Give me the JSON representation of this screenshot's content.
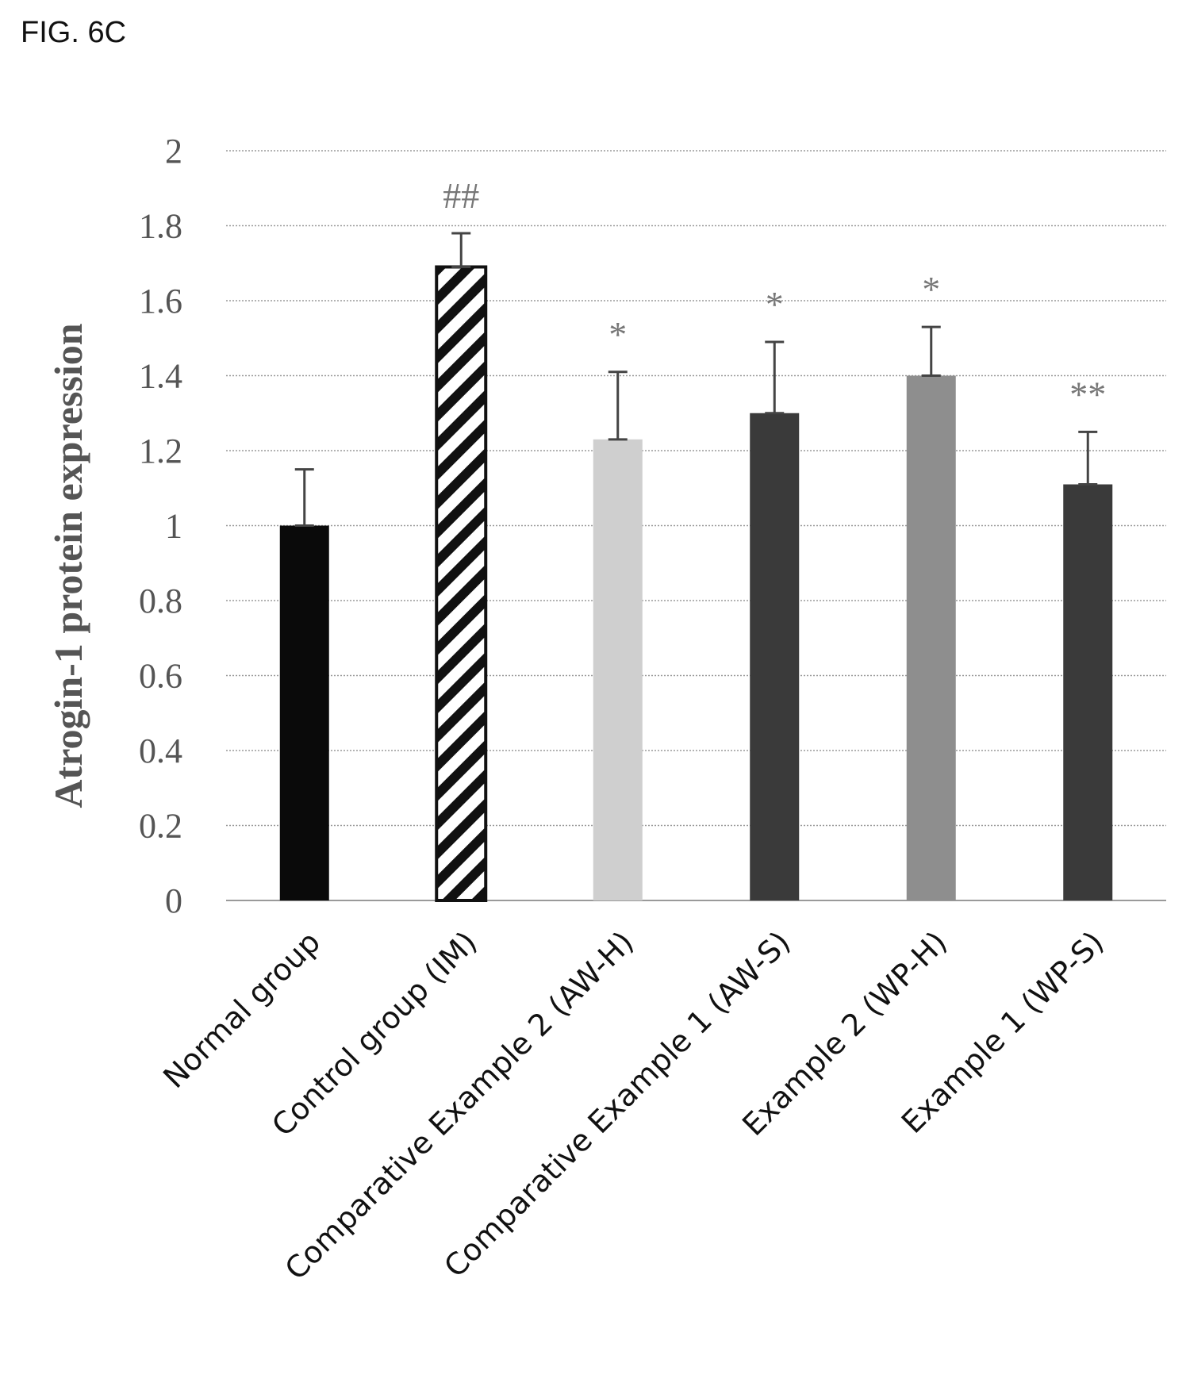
{
  "figure_label": "FIG. 6C",
  "chart_data": {
    "type": "bar",
    "title": "",
    "xlabel": "",
    "ylabel": "Atrogin-1 protein expression",
    "ylim": [
      0,
      2
    ],
    "yticks": [
      "0",
      "0.2",
      "0.4",
      "0.6",
      "0.8",
      "1",
      "1.2",
      "1.4",
      "1.6",
      "1.8",
      "2"
    ],
    "grid": true,
    "categories": [
      "Normal group",
      "Control group (IM)",
      "Comparative Example 2 (AW-H)",
      "Comparative Example 1 (AW-S)",
      "Example 2 (WP-H)",
      "Example 1 (WP-S)"
    ],
    "values": [
      1.0,
      1.69,
      1.23,
      1.3,
      1.4,
      1.11
    ],
    "errors": [
      0.15,
      0.09,
      0.18,
      0.19,
      0.13,
      0.14
    ],
    "significance": [
      "",
      "##",
      "*",
      "*",
      "*",
      "**"
    ],
    "bar_styles": [
      "solid-black",
      "hatched",
      "light-gray",
      "dark-gray",
      "mid-gray",
      "dark-gray"
    ],
    "colors": {
      "solid-black": "#0a0a0a",
      "light-gray": "#cfcfcf",
      "dark-gray": "#3a3a3a",
      "mid-gray": "#8e8e8e",
      "hatch": "#111111"
    }
  }
}
